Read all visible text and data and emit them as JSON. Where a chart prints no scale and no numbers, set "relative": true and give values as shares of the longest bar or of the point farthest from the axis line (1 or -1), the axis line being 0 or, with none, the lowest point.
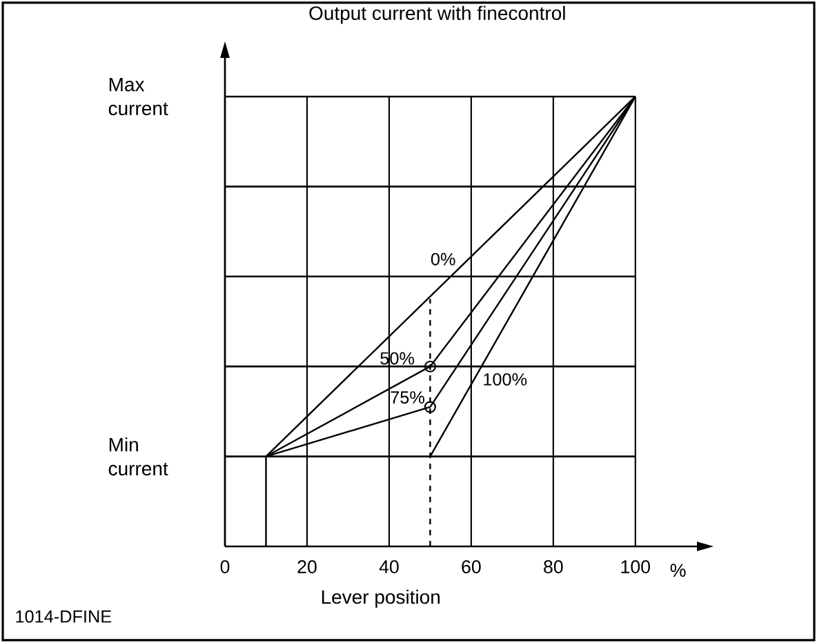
{
  "chart_data": {
    "type": "line",
    "title": "Output current with finecontrol",
    "xlabel": "Lever position",
    "annotations": [
      "%",
      "1014-DFINE"
    ],
    "relative": true,
    "xlim": [
      0,
      115
    ],
    "xticks": [
      0,
      20,
      40,
      60,
      80,
      100
    ],
    "grid": "x",
    "ref_lines": [
      {
        "axis": "y",
        "value": 0.2,
        "label": "Min current"
      },
      {
        "axis": "y",
        "value": 0.4
      },
      {
        "axis": "y",
        "value": 0.6
      },
      {
        "axis": "y",
        "value": 0.8
      },
      {
        "axis": "y",
        "value": 1,
        "label": "Max current"
      }
    ],
    "series": [
      {
        "color": "#000000",
        "x": [
          10,
          10
        ],
        "values": [
          0,
          0.2
        ]
      },
      {
        "name": "0%",
        "color": "#000000",
        "x": [
          10,
          100
        ],
        "values": [
          0.2,
          1
        ]
      },
      {
        "name": "50%",
        "color": "#000000",
        "x": [
          10,
          50,
          100
        ],
        "values": [
          0.2,
          0.4,
          1
        ]
      },
      {
        "name": "75%",
        "color": "#000000",
        "x": [
          10,
          50,
          100
        ],
        "values": [
          0.2,
          0.31,
          1
        ]
      },
      {
        "name": "100%",
        "color": "#000000",
        "x": [
          50,
          100
        ],
        "values": [
          0.2,
          1
        ]
      },
      {
        "color": "#000000",
        "x": [
          50,
          50
        ],
        "values": [
          0,
          0.55
        ],
        "line_style": "dashed"
      },
      {
        "type": "scatter",
        "marker": "circle",
        "color": "#000000",
        "x": [
          50,
          50
        ],
        "values": [
          0.4,
          0.31
        ]
      }
    ]
  }
}
